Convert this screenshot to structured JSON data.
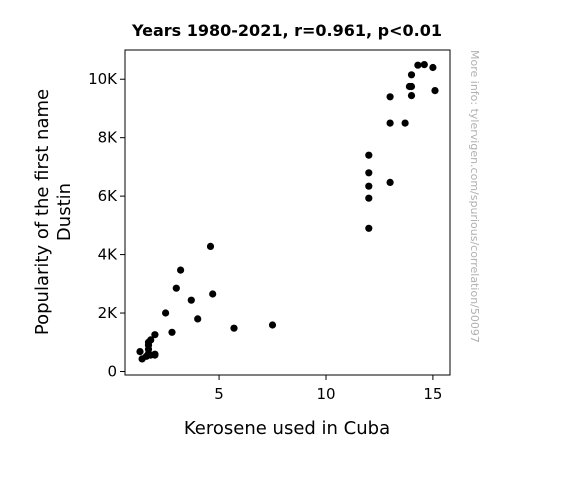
{
  "chart_data": {
    "type": "scatter",
    "title": "Years 1980-2021, r=0.961, p<0.01",
    "xlabel": "Kerosene used in Cuba",
    "ylabel_lines": [
      "Popularity of the first name",
      "Dustin"
    ],
    "watermark": "More info: tylervigen.com/spurious/correlation/50097",
    "xlim": [
      0.6,
      15.8
    ],
    "ylim": [
      -120,
      11000
    ],
    "xticks": [
      5,
      10,
      15
    ],
    "xtick_labels": [
      "5",
      "10",
      "15"
    ],
    "yticks": [
      0,
      2000,
      4000,
      6000,
      8000,
      10000
    ],
    "ytick_labels": [
      "0",
      "2K",
      "4K",
      "6K",
      "8K",
      "10K"
    ],
    "grid": false,
    "marker_color": "#000000",
    "points": [
      [
        1.3,
        680
      ],
      [
        1.4,
        430
      ],
      [
        1.6,
        520
      ],
      [
        1.7,
        620
      ],
      [
        1.7,
        760
      ],
      [
        1.7,
        900
      ],
      [
        1.7,
        1000
      ],
      [
        1.8,
        1080
      ],
      [
        1.8,
        560
      ],
      [
        2.0,
        1260
      ],
      [
        2.0,
        560
      ],
      [
        2.0,
        590
      ],
      [
        2.5,
        2000
      ],
      [
        2.8,
        1340
      ],
      [
        3.0,
        2850
      ],
      [
        3.2,
        3470
      ],
      [
        3.7,
        2440
      ],
      [
        4.0,
        1800
      ],
      [
        4.6,
        4280
      ],
      [
        4.7,
        2650
      ],
      [
        5.7,
        1480
      ],
      [
        7.5,
        1590
      ],
      [
        12.0,
        7400
      ],
      [
        12.0,
        6800
      ],
      [
        12.0,
        6340
      ],
      [
        12.0,
        5930
      ],
      [
        12.0,
        4900
      ],
      [
        13.0,
        9400
      ],
      [
        13.0,
        8500
      ],
      [
        13.0,
        6470
      ],
      [
        13.7,
        8500
      ],
      [
        13.9,
        9750
      ],
      [
        14.0,
        9750
      ],
      [
        14.0,
        9440
      ],
      [
        14.0,
        10150
      ],
      [
        14.3,
        10480
      ],
      [
        14.6,
        10500
      ],
      [
        15.0,
        10400
      ],
      [
        15.1,
        9610
      ]
    ]
  }
}
